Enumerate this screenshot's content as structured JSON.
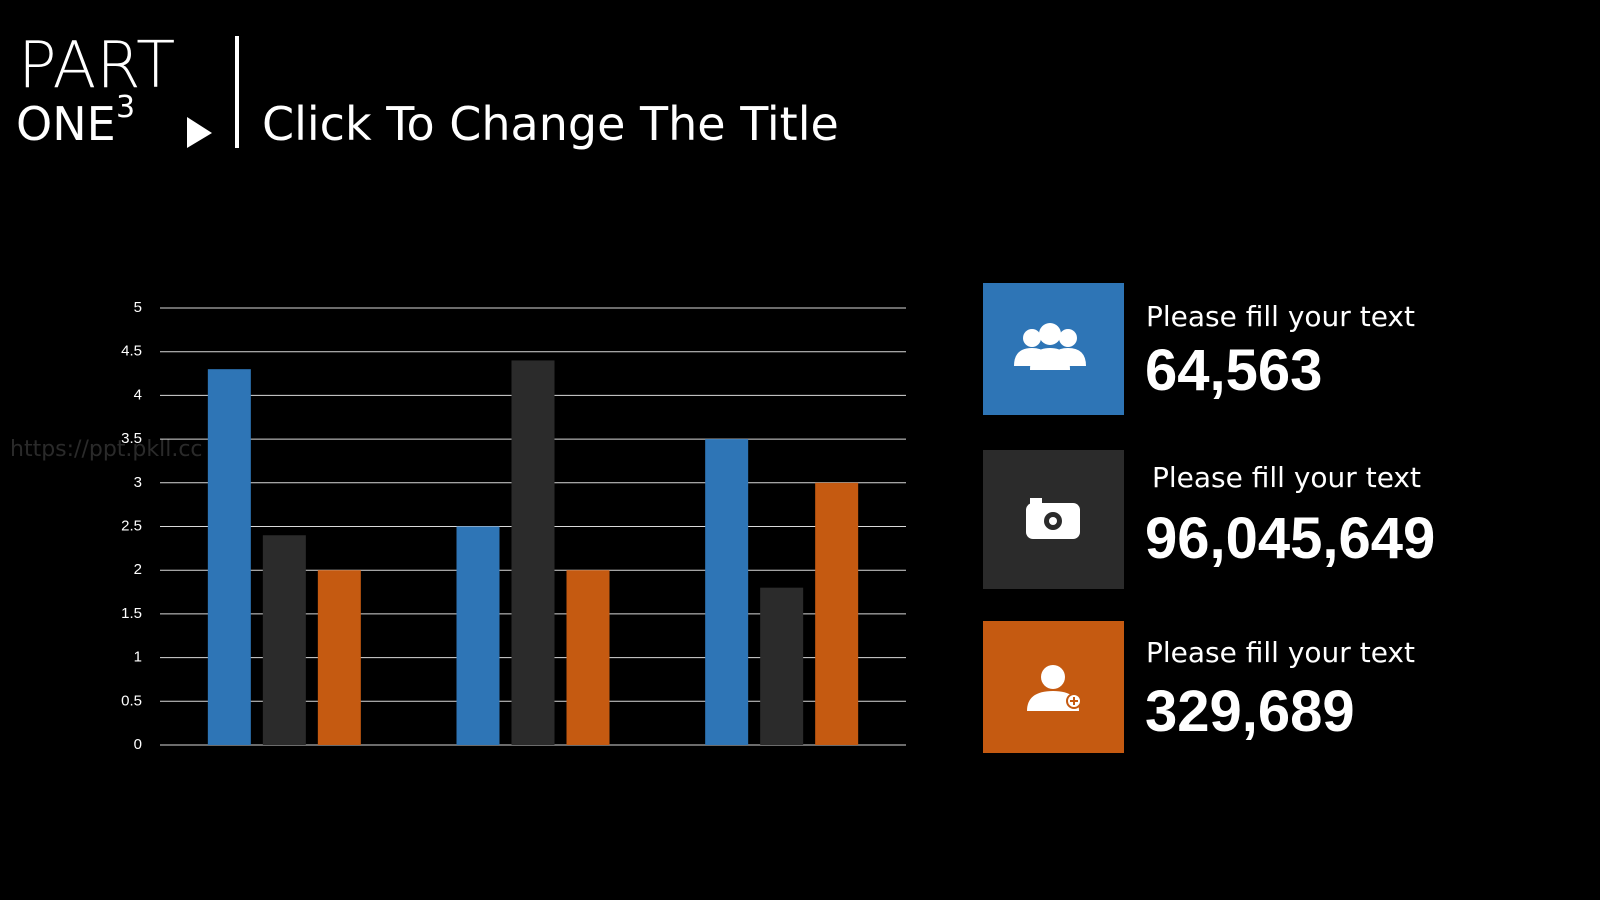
{
  "header": {
    "part": "PART",
    "one": "ONE",
    "number": "3",
    "title": "Click To Change The Title"
  },
  "watermark": "https://ppt.pkll.cc",
  "chart_data": {
    "type": "bar",
    "categories": [
      null,
      null,
      null
    ],
    "series": [
      {
        "color": "#2e75b6",
        "values": [
          4.3,
          2.5,
          3.5
        ]
      },
      {
        "color": "#2b2b2b",
        "values": [
          2.4,
          4.4,
          1.8
        ]
      },
      {
        "color": "#c55a11",
        "values": [
          2,
          2,
          3
        ]
      }
    ],
    "ylim": [
      0,
      5
    ],
    "yticks": [
      0,
      0.5,
      1,
      1.5,
      2,
      2.5,
      3,
      3.5,
      4,
      4.5,
      5
    ],
    "grid": true
  },
  "stats": [
    {
      "label": "Please fill your text",
      "value": "64,563"
    },
    {
      "label": "Please fill your text",
      "value": "96,045,649"
    },
    {
      "label": "Please fill your text",
      "value": "329,689"
    }
  ]
}
